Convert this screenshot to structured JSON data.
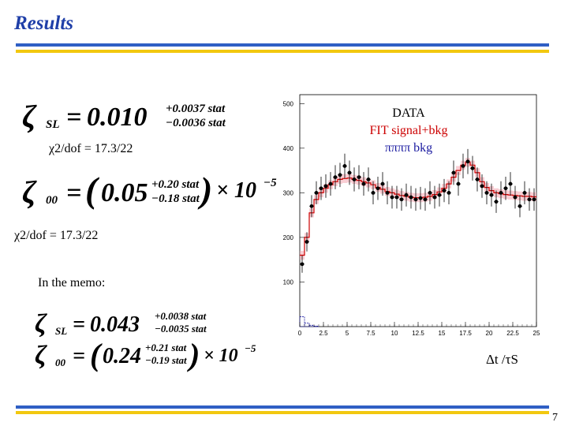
{
  "slide": {
    "title": "Results",
    "page_number": "7",
    "colors": {
      "title": "#1f3fa8",
      "bar_blue": "#2f5fc4",
      "bar_yellow": "#f2c80f"
    }
  },
  "left": {
    "eq1": {
      "symbol": "ζ",
      "sub": "SL",
      "equals": "=",
      "value": "0.010",
      "err_plus": "+0.0037 stat",
      "err_minus": "−0.0036 stat"
    },
    "chi1": "χ2/dof = 17.3/22",
    "eq2": {
      "symbol": "ζ",
      "sub": "00",
      "equals": "=",
      "open": "(",
      "value": "0.05",
      "err_plus": "+0.20 stat",
      "err_minus": "−0.18 stat",
      "close": ")",
      "times": "× 10",
      "exp": "−5"
    },
    "chi2": "χ2/dof = 17.3/22",
    "memo_label": "In the memo:",
    "eq3": {
      "symbol": "ζ",
      "sub": "SL",
      "equals": "=",
      "value": "0.043",
      "err_plus": "+0.0038 stat",
      "err_minus": "−0.0035 stat"
    },
    "eq4": {
      "symbol": "ζ",
      "sub": "00",
      "equals": "=",
      "open": "(",
      "value": "0.24",
      "err_plus": "+0.21 stat",
      "err_minus": "−0.19 stat",
      "close": ")",
      "times": "× 10",
      "exp": "−5"
    }
  },
  "chart_data": {
    "type": "scatter",
    "xlabel": "Δt /τS",
    "xlim": [
      0,
      25
    ],
    "ylim": [
      0,
      520
    ],
    "x_ticks": [
      "0",
      "2.5",
      "5",
      "7.5",
      "10",
      "12.5",
      "15",
      "17.5",
      "20",
      "22.5",
      "25"
    ],
    "y_ticks": [
      "100",
      "200",
      "300",
      "400",
      "500"
    ],
    "legend": [
      "DATA",
      "FIT signal+bkg",
      "ππππ bkg"
    ],
    "legend_colors": [
      "#000000",
      "#cc0000",
      "#1a1aa0"
    ],
    "legend_placement": "top-center",
    "bin_width": 0.5,
    "data": {
      "x": [
        0.25,
        0.75,
        1.25,
        1.75,
        2.25,
        2.75,
        3.25,
        3.75,
        4.25,
        4.75,
        5.25,
        5.75,
        6.25,
        6.75,
        7.25,
        7.75,
        8.25,
        8.75,
        9.25,
        9.75,
        10.25,
        10.75,
        11.25,
        11.75,
        12.25,
        12.75,
        13.25,
        13.75,
        14.25,
        14.75,
        15.25,
        15.75,
        16.25,
        16.75,
        17.25,
        17.75,
        18.25,
        18.75,
        19.25,
        19.75,
        20.25,
        20.75,
        21.25,
        21.75,
        22.25,
        22.75,
        23.25,
        23.75,
        24.25,
        24.75
      ],
      "y": [
        140,
        190,
        270,
        300,
        310,
        315,
        320,
        335,
        340,
        360,
        345,
        330,
        335,
        320,
        330,
        300,
        310,
        320,
        300,
        290,
        290,
        285,
        295,
        290,
        285,
        288,
        285,
        300,
        290,
        295,
        305,
        300,
        345,
        320,
        360,
        370,
        355,
        330,
        315,
        300,
        295,
        280,
        300,
        310,
        320,
        290,
        270,
        300,
        285,
        285
      ]
    },
    "fit": {
      "x": [
        0.25,
        0.75,
        1.25,
        1.75,
        2.25,
        2.75,
        3.25,
        3.75,
        4.25,
        4.75,
        5.25,
        5.75,
        6.25,
        6.75,
        7.25,
        7.75,
        8.25,
        8.75,
        9.25,
        9.75,
        10.25,
        10.75,
        11.25,
        11.75,
        12.25,
        12.75,
        13.25,
        13.75,
        14.25,
        14.75,
        15.25,
        15.75,
        16.25,
        16.75,
        17.25,
        17.75,
        18.25,
        18.75,
        19.25,
        19.75,
        20.25,
        20.75,
        21.25,
        21.75,
        22.25,
        22.75,
        23.25,
        23.75,
        24.25,
        24.75
      ],
      "y": [
        160,
        200,
        255,
        285,
        300,
        310,
        318,
        325,
        330,
        332,
        333,
        330,
        328,
        325,
        322,
        318,
        312,
        308,
        303,
        300,
        297,
        294,
        292,
        290,
        289,
        289,
        290,
        292,
        296,
        302,
        310,
        320,
        335,
        350,
        362,
        368,
        362,
        345,
        325,
        312,
        305,
        300,
        298,
        296,
        295,
        294,
        293,
        292,
        292,
        291
      ]
    },
    "bkg": {
      "x": [
        0.25,
        0.75,
        1.25,
        1.75
      ],
      "y": [
        22,
        8,
        3,
        1
      ]
    }
  }
}
